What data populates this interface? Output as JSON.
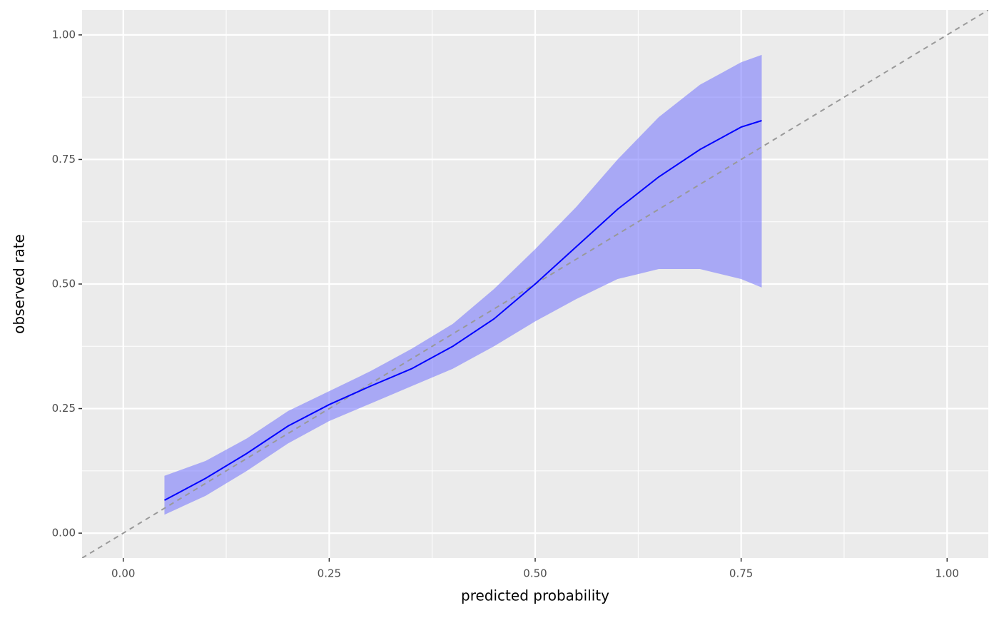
{
  "chart_data": {
    "type": "ribbon_line",
    "x_label": "predicted probability",
    "y_label": "observed rate",
    "x": [
      0.05,
      0.1,
      0.15,
      0.2,
      0.25,
      0.3,
      0.35,
      0.4,
      0.45,
      0.5,
      0.55,
      0.6,
      0.65,
      0.7,
      0.75,
      0.775
    ],
    "values": [
      0.066,
      0.11,
      0.16,
      0.215,
      0.258,
      0.295,
      0.33,
      0.375,
      0.43,
      0.5,
      0.575,
      0.65,
      0.715,
      0.77,
      0.815,
      0.828
    ],
    "upper": [
      0.115,
      0.145,
      0.19,
      0.245,
      0.285,
      0.325,
      0.37,
      0.42,
      0.49,
      0.57,
      0.655,
      0.75,
      0.835,
      0.9,
      0.945,
      0.96
    ],
    "lower": [
      0.037,
      0.075,
      0.125,
      0.18,
      0.225,
      0.26,
      0.295,
      0.33,
      0.375,
      0.425,
      0.47,
      0.51,
      0.53,
      0.53,
      0.51,
      0.493
    ],
    "color": "#0000ff",
    "band_color": "#6666ff",
    "diagonal": true,
    "grid": true,
    "xlim": [
      -0.05,
      1.05
    ],
    "ylim": [
      -0.05,
      1.05
    ],
    "xticks": [
      {
        "value": 0,
        "label": "0.00"
      },
      {
        "value": 0.25,
        "label": "0.25"
      },
      {
        "value": 0.5,
        "label": "0.50"
      },
      {
        "value": 0.75,
        "label": "0.75"
      },
      {
        "value": 1,
        "label": "1.00"
      }
    ],
    "yticks": [
      {
        "value": 0,
        "label": "0.00"
      },
      {
        "value": 0.25,
        "label": "0.25"
      },
      {
        "value": 0.5,
        "label": "0.50"
      },
      {
        "value": 0.75,
        "label": "0.75"
      },
      {
        "value": 1,
        "label": "1.00"
      }
    ],
    "xminor": [
      0.125,
      0.375,
      0.625,
      0.875
    ],
    "yminor": [
      0.125,
      0.375,
      0.625,
      0.875
    ]
  }
}
